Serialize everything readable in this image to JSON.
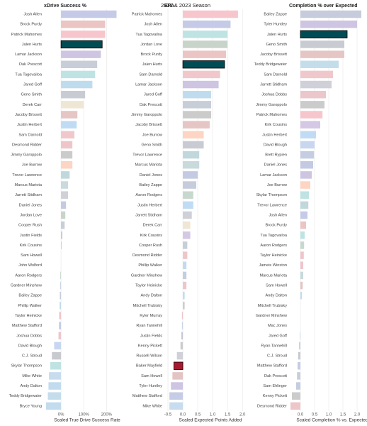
{
  "title": "2022 & 2023 Season",
  "chart_data": [
    {
      "type": "bar",
      "orientation": "horizontal",
      "title": "xDrive Success %",
      "xlabel": "Scaled True Drive Success Rate",
      "categories": [
        "Josh Allen",
        "Brock Purdy",
        "Patrick Mahomes",
        "Jalen Hurts",
        "Lamar Jackson",
        "Dak Prescott",
        "Tua Tagovailoa",
        "Jared Goff",
        "Geno Smith",
        "Derek Carr",
        "Jacoby Brissett",
        "Justin Herbert",
        "Sam Darnold",
        "Desmond Ridder",
        "Jimmy Garoppolo",
        "Joe Burrow",
        "Trevor Lawrence",
        "Marcus Mariota",
        "Jarrett Stidham",
        "Daniel Jones",
        "Jordan Love",
        "Cooper Rush",
        "Justin Fields",
        "Kirk Cousins",
        "Sam Howell",
        "John Wolford",
        "Aaron Rodgers",
        "Gardner Minshew",
        "Bailey Zappe",
        "Phillip Walker",
        "Taylor Heinicke",
        "Matthew Stafford",
        "Joshua Dobbs",
        "David Blough",
        "C.J. Stroud",
        "Skylar Thompson",
        "Mike White",
        "Andy Dalton",
        "Teddy Bridgewater",
        "Bryce Young"
      ],
      "values": [
        244,
        194,
        194,
        181,
        175,
        159,
        150,
        138,
        106,
        100,
        72,
        69,
        59,
        50,
        50,
        50,
        38,
        31,
        31,
        22,
        19,
        16,
        6,
        3,
        0,
        0,
        -3,
        -3,
        -5,
        -6,
        -8,
        -9,
        -11,
        -30,
        -40,
        -47,
        -53,
        -55,
        -58,
        -66
      ],
      "colors": [
        "#c5cbe6",
        "#ebc4c4",
        "#f7c6cd",
        "#004c54",
        "#cdc5e2",
        "#c8ced8",
        "#bfe3e3",
        "#bfdcee",
        "#c8ccd2",
        "#efe6d4",
        "#e6c5c5",
        "#c0dcf5",
        "#f0c8cc",
        "#eec6ca",
        "#cbcbcb",
        "#fdd5c2",
        "#c0d8dc",
        "#c8dadb",
        "#cfd0d8",
        "#c4cae2",
        "#c8d4c9",
        "#c8ced8",
        "#c6c9d3",
        "#d5c8e4",
        "#e3c4c4",
        "#c6cce6",
        "#c8d8cf",
        "#c4cde2",
        "#c7ccdc",
        "#c2dbee",
        "#eec6ca",
        "#c6cce6",
        "#ebc7cc",
        "#c9d6f0",
        "#c9cacf",
        "#bfe3e3",
        "#c8dcef",
        "#c2dbee",
        "#c4ddeb",
        "#c2dbee"
      ],
      "xlim": [
        -75,
        255
      ],
      "xticks": [
        {
          "value": 0,
          "label": "0%"
        },
        {
          "value": 100,
          "label": "100%"
        },
        {
          "value": 200,
          "label": "200%"
        }
      ],
      "grid": true
    },
    {
      "type": "bar",
      "orientation": "horizontal",
      "title": "EPA",
      "xlabel": "Scaled Expected Points Added",
      "categories": [
        "Patrick Mahomes",
        "Josh Allen",
        "Tua Tagovailoa",
        "Jordan Love",
        "Brock Purdy",
        "Jalen Hurts",
        "Sam Darnold",
        "Lamar Jackson",
        "Jared Goff",
        "Dak Prescott",
        "Jimmy Garoppolo",
        "Jacoby Brissett",
        "Joe Burrow",
        "Geno Smith",
        "Trevor Lawrence",
        "Marcus Mariota",
        "Daniel Jones",
        "Bailey Zappe",
        "Aaron Rodgers",
        "Justin Herbert",
        "Jarrett Stidham",
        "Derek Carr",
        "Kirk Cousins",
        "Cooper Rush",
        "Desmond Ridder",
        "Phillip Walker",
        "Gardner Minshew",
        "Taylor Heinicke",
        "Andy Dalton",
        "Mitchell Trubisky",
        "Kyler Murray",
        "Ryan Tannehill",
        "Justin Fields",
        "Kenny Pickett",
        "Russell Wilson",
        "Baker Mayfield",
        "Sam Howell",
        "Tyler Huntley",
        "Matthew Stafford",
        "Mike White"
      ],
      "values": [
        1.85,
        1.6,
        1.5,
        1.5,
        1.45,
        1.4,
        1.25,
        1.2,
        0.95,
        0.95,
        0.95,
        0.9,
        0.7,
        0.7,
        0.55,
        0.55,
        0.5,
        0.45,
        0.35,
        0.35,
        0.3,
        0.25,
        0.25,
        0.15,
        0.15,
        0.12,
        0.12,
        0.12,
        0.06,
        0.06,
        -0.03,
        -0.03,
        -0.05,
        -0.08,
        -0.2,
        -0.3,
        -0.35,
        -0.4,
        -0.45,
        -0.45
      ],
      "colors": [
        "#f7c6cd",
        "#c5cbe6",
        "#bfe3e3",
        "#c8d4c9",
        "#ebc4c4",
        "#004c54",
        "#f0c8cc",
        "#cdc5e2",
        "#bfdcee",
        "#c8ced8",
        "#cbcbcb",
        "#e6c5c5",
        "#fdd5c2",
        "#c8ccd2",
        "#c0d8dc",
        "#c8dadb",
        "#c4cae2",
        "#c7ccdc",
        "#c8d8cf",
        "#c0dcf5",
        "#cfd0d8",
        "#efe6d4",
        "#d5c8e4",
        "#c8ced8",
        "#eec6ca",
        "#c2dbee",
        "#c4cde2",
        "#eec6ca",
        "#c2dbee",
        "#cccccc",
        "#ecc4cc",
        "#c9d5e6",
        "#c6c9d3",
        "#cccccc",
        "#cfd0d8",
        "#a71930",
        "#e3c4c4",
        "#cdc5e2",
        "#c6cce6",
        "#c8dcef"
      ],
      "xlim": [
        -0.62,
        2.09
      ],
      "xticks": [
        -0.5,
        {
          "value": 0,
          "label": "0.0"
        },
        0.5,
        {
          "value": 1,
          "label": "1.0"
        },
        1.5,
        {
          "value": 2,
          "label": "2.0"
        }
      ],
      "grid": true
    },
    {
      "type": "bar",
      "orientation": "horizontal",
      "title": "Completion % over Expected",
      "xlabel": "Scaled Completion % vs. Expected",
      "categories": [
        "Bailey Zappe",
        "Tyler Huntley",
        "Jalen Hurts",
        "Geno Smith",
        "Jacoby Brissett",
        "Teddy Bridgewater",
        "Sam Darnold",
        "Jarrett Stidham",
        "Joshua Dobbs",
        "Jimmy Garoppolo",
        "Patrick Mahomes",
        "Kirk Cousins",
        "Justin Herbert",
        "David Blough",
        "Brett Rypien",
        "Daniel Jones",
        "Lamar Jackson",
        "Joe Burrow",
        "Skylar Thompson",
        "Trevor Lawrence",
        "Josh Allen",
        "Brock Purdy",
        "Tua Tagovailoa",
        "Aaron Rodgers",
        "Taylor Heinicke",
        "Jameis Winston",
        "Marcus Mariota",
        "Sam Howell",
        "Andy Dalton",
        "Mitchell Trubisky",
        "Gardner Minshew",
        "Mac Jones",
        "Jared Goff",
        "Ryan Tannehill",
        "C.J. Stroud",
        "Matthew Stafford",
        "Dak Prescott",
        "Sam Ehlinger",
        "Kenny Pickett",
        "Desmond Ridder"
      ],
      "values": [
        2.15,
        2.0,
        1.65,
        1.55,
        1.55,
        1.35,
        1.15,
        1.1,
        0.9,
        0.85,
        0.78,
        0.7,
        0.55,
        0.5,
        0.48,
        0.45,
        0.4,
        0.35,
        0.3,
        0.28,
        0.25,
        0.2,
        0.15,
        0.13,
        0.12,
        0.1,
        0.1,
        0.08,
        0.05,
        0,
        0,
        0,
        -0.02,
        -0.05,
        -0.08,
        -0.1,
        -0.12,
        -0.15,
        -0.3,
        -0.35
      ],
      "colors": [
        "#c7ccdc",
        "#cdc5e2",
        "#004c54",
        "#c8ccd2",
        "#e6c5c5",
        "#c4ddeb",
        "#f0c8cc",
        "#cfd0d8",
        "#ebc7cc",
        "#cbcbcb",
        "#f7c6cd",
        "#d5c8e4",
        "#c0dcf5",
        "#c9d6f0",
        "#c4cde2",
        "#c4cae2",
        "#cdc5e2",
        "#fdd5c2",
        "#bfe3e3",
        "#c0d8dc",
        "#c5cbe6",
        "#ebc4c4",
        "#bfe3e3",
        "#c8d8cf",
        "#eec6ca",
        "#eec6ca",
        "#c8dadb",
        "#e3c4c4",
        "#c2dbee",
        "#cccccc",
        "#c4cde2",
        "#c7ccdc",
        "#bfdcee",
        "#c9d5e6",
        "#c9cacf",
        "#c6cce6",
        "#c8ced8",
        "#c4cde2",
        "#cccccc",
        "#eec6ca"
      ],
      "xlim": [
        -0.4,
        2.25
      ],
      "xticks": [
        {
          "value": 0,
          "label": "0.0"
        },
        0.5,
        {
          "value": 1,
          "label": "1.0"
        },
        1.5,
        {
          "value": 2,
          "label": "2.0"
        }
      ],
      "grid": true
    }
  ]
}
